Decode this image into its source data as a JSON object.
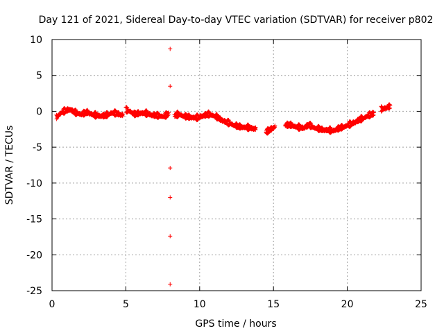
{
  "chart_data": {
    "type": "scatter",
    "title": "Day 121 of 2021, Sidereal Day-to-day VTEC variation (SDTVAR) for receiver p802",
    "xlabel": "GPS time / hours",
    "ylabel": "SDTVAR / TECUs",
    "xlim": [
      0,
      25
    ],
    "ylim": [
      -25,
      10
    ],
    "xticks": [
      0,
      5,
      10,
      15,
      20,
      25
    ],
    "yticks": [
      10,
      5,
      0,
      -5,
      -10,
      -15,
      -20,
      -25
    ],
    "grid": true,
    "marker": "plus",
    "color": "#ff0000",
    "trend_segments": [
      [
        [
          0.3,
          -0.7
        ],
        [
          0.6,
          -0.1
        ],
        [
          0.9,
          0.2
        ],
        [
          1.2,
          0.4
        ],
        [
          1.6,
          -0.1
        ],
        [
          2.0,
          -0.3
        ],
        [
          2.4,
          0.0
        ],
        [
          2.8,
          -0.4
        ],
        [
          3.2,
          -0.5
        ],
        [
          3.6,
          -0.5
        ],
        [
          4.0,
          -0.1
        ],
        [
          4.4,
          -0.2
        ],
        [
          4.8,
          -0.4
        ]
      ],
      [
        [
          5.0,
          0.3
        ],
        [
          5.3,
          0.1
        ],
        [
          5.6,
          -0.3
        ],
        [
          6.0,
          -0.1
        ],
        [
          6.4,
          -0.2
        ],
        [
          6.8,
          -0.4
        ],
        [
          7.2,
          -0.5
        ],
        [
          7.6,
          -0.6
        ],
        [
          7.9,
          -0.2
        ]
      ],
      [
        [
          8.3,
          -0.5
        ],
        [
          8.6,
          -0.3
        ],
        [
          9.0,
          -0.6
        ],
        [
          9.4,
          -0.7
        ],
        [
          9.8,
          -0.8
        ],
        [
          10.2,
          -0.5
        ],
        [
          10.6,
          -0.3
        ],
        [
          11.0,
          -0.5
        ],
        [
          11.4,
          -1.0
        ],
        [
          11.8,
          -1.4
        ],
        [
          12.2,
          -1.7
        ],
        [
          12.6,
          -2.0
        ],
        [
          13.0,
          -2.1
        ],
        [
          13.4,
          -2.2
        ],
        [
          13.8,
          -2.3
        ]
      ],
      [
        [
          14.5,
          -2.8
        ],
        [
          14.8,
          -2.4
        ],
        [
          15.1,
          -2.0
        ]
      ],
      [
        [
          15.8,
          -1.8
        ],
        [
          16.2,
          -1.8
        ],
        [
          16.6,
          -2.1
        ],
        [
          17.0,
          -2.2
        ],
        [
          17.4,
          -1.8
        ],
        [
          17.8,
          -2.2
        ],
        [
          18.2,
          -2.4
        ],
        [
          18.6,
          -2.5
        ],
        [
          19.0,
          -2.6
        ],
        [
          19.4,
          -2.3
        ],
        [
          19.8,
          -2.0
        ],
        [
          20.2,
          -1.7
        ],
        [
          20.6,
          -1.3
        ],
        [
          21.0,
          -0.9
        ],
        [
          21.4,
          -0.5
        ],
        [
          21.8,
          -0.2
        ]
      ],
      [
        [
          22.3,
          0.4
        ],
        [
          22.6,
          0.6
        ],
        [
          22.9,
          0.8
        ]
      ]
    ],
    "outliers": [
      [
        8.0,
        8.7
      ],
      [
        8.0,
        3.5
      ],
      [
        8.0,
        -7.9
      ],
      [
        8.0,
        -12.0
      ],
      [
        8.0,
        -17.4
      ],
      [
        8.0,
        -24.1
      ]
    ]
  }
}
